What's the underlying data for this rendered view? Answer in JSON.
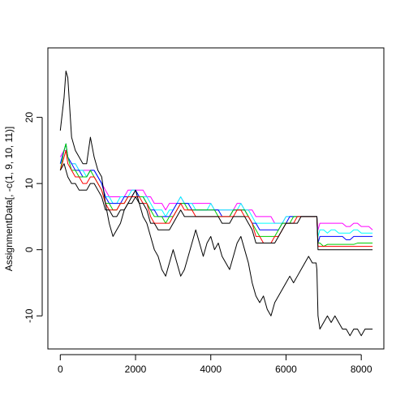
{
  "chart_data": {
    "type": "line",
    "title": "",
    "xlabel": "",
    "ylabel": "AssignmentData[, -c(1, 9, 10, 11)]",
    "xlim": [
      -330,
      8600
    ],
    "ylim": [
      -15,
      30.5
    ],
    "x_ticks": [
      0,
      2000,
      4000,
      6000,
      8000
    ],
    "y_ticks": [
      -10,
      0,
      10,
      20
    ],
    "x_tick_labels": [
      "0",
      "2000",
      "4000",
      "6000",
      "8000"
    ],
    "y_tick_labels": [
      "-10",
      "0",
      "10",
      "20"
    ],
    "grid": false,
    "legend": "none",
    "x": [
      0,
      100,
      150,
      200,
      300,
      400,
      500,
      600,
      700,
      800,
      900,
      1000,
      1100,
      1200,
      1300,
      1400,
      1500,
      1600,
      1700,
      1800,
      1900,
      2000,
      2100,
      2200,
      2300,
      2400,
      2500,
      2600,
      2700,
      2800,
      2900,
      3000,
      3100,
      3200,
      3300,
      3400,
      3500,
      3600,
      3700,
      3800,
      3900,
      4000,
      4100,
      4200,
      4300,
      4400,
      4500,
      4600,
      4700,
      4800,
      4900,
      5000,
      5100,
      5200,
      5300,
      5400,
      5500,
      5600,
      5700,
      5800,
      5900,
      6000,
      6100,
      6200,
      6300,
      6400,
      6500,
      6600,
      6700,
      6800,
      6820,
      6850,
      6900,
      7000,
      7100,
      7200,
      7300,
      7400,
      7500,
      7600,
      7700,
      7800,
      7900,
      8000,
      8100,
      8200,
      8300
    ],
    "series": [
      {
        "color": "#000000",
        "values": [
          18,
          23,
          27,
          26,
          17,
          15,
          14,
          13,
          13,
          17,
          14,
          12,
          11,
          7,
          4,
          2,
          3,
          4,
          6,
          7,
          8,
          9,
          7,
          5,
          4,
          2,
          0,
          -1,
          -3,
          -4,
          -2,
          0,
          -2,
          -4,
          -3,
          -1,
          1,
          3,
          1,
          -1,
          1,
          2,
          0,
          1,
          -1,
          -2,
          -3,
          -1,
          1,
          2,
          0,
          -2,
          -5,
          -7,
          -8,
          -7,
          -9,
          -10,
          -8,
          -7,
          -6,
          -5,
          -4,
          -5,
          -4,
          -3,
          -2,
          -1,
          -2,
          -2,
          -3,
          -10,
          -12,
          -11,
          -10,
          -11,
          -10,
          -11,
          -12,
          -12,
          -13,
          -12,
          -12,
          -13,
          -12,
          -12,
          -12
        ]
      },
      {
        "color": "#000000",
        "values": [
          12,
          13,
          12,
          11,
          10,
          10,
          9,
          9,
          9,
          10,
          10,
          9,
          8,
          6,
          6,
          5,
          5,
          6,
          6,
          7,
          7,
          8,
          7,
          7,
          6,
          4,
          4,
          3,
          3,
          3,
          3,
          4,
          5,
          6,
          5,
          5,
          5,
          5,
          5,
          5,
          5,
          5,
          5,
          5,
          4,
          4,
          4,
          5,
          5,
          5,
          5,
          4,
          3,
          1,
          1,
          1,
          1,
          1,
          1,
          2,
          3,
          4,
          4,
          4,
          4,
          5,
          5,
          5,
          5,
          5,
          5,
          0,
          0,
          0,
          0,
          0,
          0,
          0,
          0,
          0,
          0,
          0,
          0,
          0,
          0,
          0,
          0
        ]
      },
      {
        "color": "#FF0000",
        "values": [
          12,
          14,
          15,
          13,
          12,
          11,
          11,
          10,
          10,
          11,
          11,
          10,
          9,
          7,
          6,
          6,
          6,
          7,
          7,
          8,
          8,
          8,
          8,
          7,
          7,
          5,
          4,
          4,
          4,
          4,
          4,
          5,
          6,
          7,
          6,
          6,
          6,
          5,
          5,
          5,
          5,
          5,
          5,
          5,
          5,
          5,
          5,
          5,
          6,
          6,
          5,
          5,
          4,
          2,
          2,
          1,
          1,
          1,
          2,
          2,
          3,
          4,
          4,
          4,
          5,
          5,
          5,
          5,
          5,
          5,
          5,
          0.5,
          0.5,
          0.5,
          0.5,
          0.5,
          0.5,
          0.5,
          0.5,
          0.5,
          0.5,
          0.5,
          0.5,
          0.5,
          0.5,
          0.5,
          0.5
        ]
      },
      {
        "color": "#00CD00",
        "values": [
          12,
          15,
          16,
          14,
          12,
          12,
          11,
          11,
          11,
          12,
          11,
          10,
          9,
          7,
          7,
          6,
          6,
          7,
          7,
          8,
          8,
          8,
          8,
          8,
          7,
          6,
          5,
          5,
          5,
          4,
          5,
          5,
          6,
          7,
          7,
          6,
          6,
          6,
          6,
          6,
          6,
          6,
          6,
          5,
          5,
          5,
          5,
          6,
          6,
          6,
          6,
          5,
          4,
          3,
          2,
          2,
          2,
          2,
          2,
          3,
          4,
          4,
          4,
          5,
          5,
          5,
          5,
          5,
          5,
          5,
          5,
          1,
          1,
          0.5,
          0.8,
          0.8,
          0.8,
          0.8,
          0.8,
          0.8,
          0.8,
          0.8,
          1,
          1,
          1,
          1,
          1
        ]
      },
      {
        "color": "#0000FF",
        "values": [
          13,
          15,
          16,
          14,
          13,
          12,
          12,
          11,
          11,
          12,
          12,
          11,
          10,
          8,
          7,
          7,
          7,
          7,
          8,
          8,
          8,
          9,
          8,
          8,
          7,
          6,
          6,
          5,
          5,
          5,
          5,
          6,
          7,
          7,
          7,
          7,
          6,
          6,
          6,
          6,
          6,
          6,
          6,
          6,
          5,
          5,
          5,
          6,
          6,
          6,
          6,
          5,
          4,
          4,
          3,
          3,
          3,
          3,
          3,
          3,
          4,
          4,
          5,
          5,
          5,
          5,
          5,
          5,
          5,
          5,
          5,
          1,
          2,
          2,
          2,
          2,
          2,
          2,
          2,
          1.5,
          1.5,
          2,
          2,
          2,
          2,
          2,
          2
        ]
      },
      {
        "color": "#00FFFF",
        "values": [
          13,
          15,
          16,
          14,
          13,
          13,
          12,
          12,
          11,
          12,
          12,
          11,
          10,
          8,
          8,
          7,
          7,
          8,
          8,
          8,
          9,
          9,
          8,
          8,
          8,
          7,
          6,
          6,
          6,
          5,
          6,
          6,
          7,
          8,
          7,
          7,
          7,
          6,
          6,
          6,
          6,
          7,
          6,
          6,
          6,
          6,
          6,
          6,
          6,
          7,
          6,
          6,
          5,
          4,
          4,
          4,
          4,
          4,
          4,
          4,
          4,
          5,
          5,
          5,
          5,
          5,
          5,
          5,
          5,
          5,
          5,
          2,
          3,
          3,
          2.5,
          3,
          3,
          2.5,
          2.5,
          2.5,
          2.5,
          3,
          3,
          2.5,
          2.5,
          2.5,
          2.5
        ]
      },
      {
        "color": "#FF00FF",
        "values": [
          14,
          15,
          15,
          14,
          13,
          13,
          12,
          12,
          12,
          12,
          12,
          11,
          10,
          9,
          8,
          8,
          8,
          8,
          8,
          9,
          9,
          9,
          9,
          9,
          8,
          8,
          7,
          7,
          7,
          6,
          7,
          7,
          7,
          8,
          7,
          7,
          7,
          7,
          7,
          7,
          7,
          7,
          6,
          6,
          6,
          6,
          6,
          6,
          7,
          7,
          6,
          6,
          6,
          5,
          5,
          5,
          5,
          5,
          4,
          4,
          4,
          5,
          5,
          5,
          5,
          5,
          5,
          5,
          5,
          5,
          5,
          3,
          4,
          4,
          4,
          4,
          4,
          4,
          4,
          3.5,
          3.5,
          4,
          4,
          3.5,
          3.5,
          3.5,
          3
        ]
      }
    ]
  }
}
